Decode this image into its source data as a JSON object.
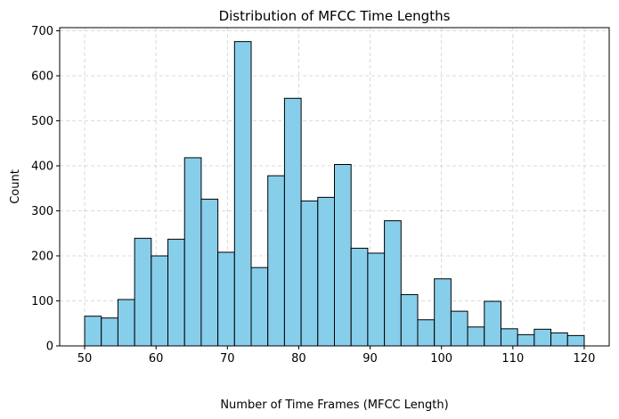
{
  "chart_data": {
    "type": "bar",
    "title": "Distribution of MFCC Time Lengths",
    "xlabel": "Number of Time Frames (MFCC Length)",
    "ylabel": "Count",
    "xlim": [
      46.5,
      123.5
    ],
    "ylim": [
      0,
      707
    ],
    "grid": true,
    "bar_color": "#87ceeb",
    "edge_color": "#000000",
    "x_ticks": [
      50,
      60,
      70,
      80,
      90,
      100,
      110,
      120
    ],
    "y_ticks": [
      0,
      100,
      200,
      300,
      400,
      500,
      600,
      700
    ],
    "bin_edges": [
      50,
      52.3333,
      54.6667,
      57,
      59.3333,
      61.6667,
      64,
      66.3333,
      68.6667,
      71,
      73.3333,
      75.6667,
      78,
      80.3333,
      82.6667,
      85,
      87.3333,
      89.6667,
      92,
      94.3333,
      96.6667,
      99,
      101.3333,
      103.6667,
      106,
      108.3333,
      110.6667,
      113,
      115.3333,
      117.6667,
      120
    ],
    "values": [
      66,
      62,
      103,
      239,
      200,
      237,
      418,
      326,
      208,
      676,
      174,
      378,
      550,
      322,
      330,
      403,
      217,
      206,
      278,
      114,
      58,
      149,
      77,
      42,
      99,
      38,
      25,
      37,
      29,
      23
    ]
  }
}
